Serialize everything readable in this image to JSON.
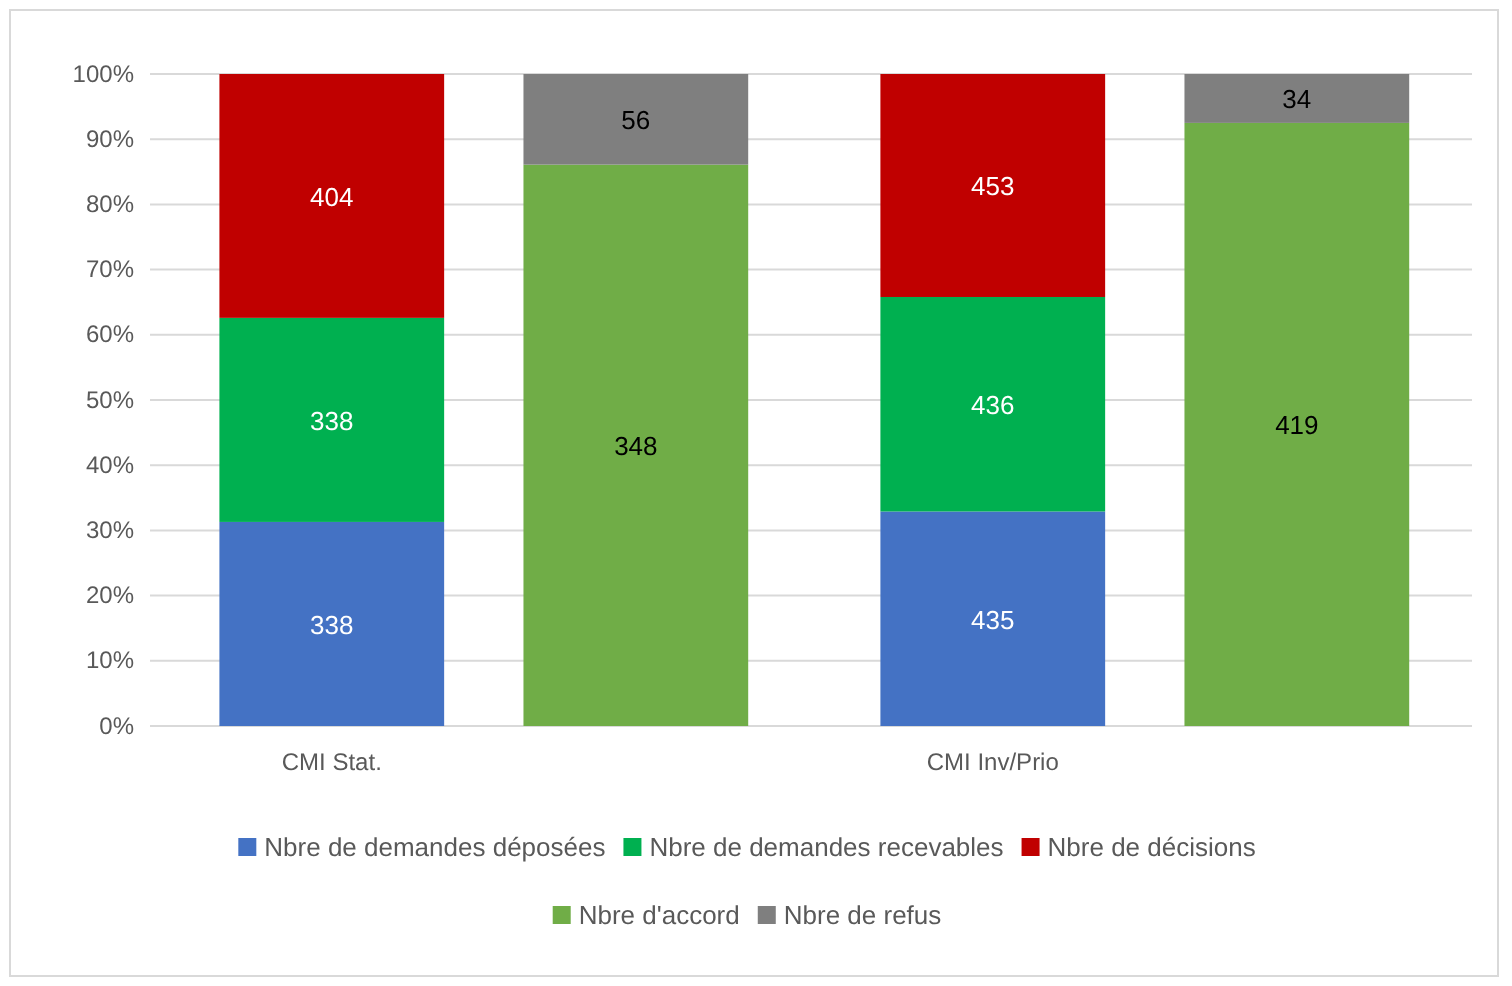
{
  "chart_data": {
    "type": "bar",
    "stacked": true,
    "categories": [
      "CMI Stat.",
      null,
      "CMI Inv/Prio",
      null
    ],
    "series": [
      {
        "name": "Nbre de demandes déposées",
        "color": "#4472c4",
        "values": [
          31.3,
          null,
          32.9,
          null
        ]
      },
      {
        "name": "Nbre de demandes recevables",
        "color": "#00b050",
        "values": [
          31.3,
          null,
          32.9,
          null
        ]
      },
      {
        "name": "Nbre de décisions",
        "color": "#c00000",
        "values": [
          37.4,
          null,
          34.2,
          null
        ]
      },
      {
        "name": "Nbre d'accord",
        "color": "#70ad47",
        "values": [
          null,
          86.1,
          null,
          92.5
        ]
      },
      {
        "name": "Nbre de refus",
        "color": "#7f7f7f",
        "values": [
          null,
          13.9,
          null,
          7.5
        ]
      }
    ],
    "ylim": [
      0,
      100
    ],
    "yticks": [
      {
        "value": 0,
        "label": "0%"
      },
      {
        "value": 10,
        "label": "10%"
      },
      {
        "value": 20,
        "label": "20%"
      },
      {
        "value": 30,
        "label": "30%"
      },
      {
        "value": 40,
        "label": "40%"
      },
      {
        "value": 50,
        "label": "50%"
      },
      {
        "value": 60,
        "label": "60%"
      },
      {
        "value": 70,
        "label": "70%"
      },
      {
        "value": 80,
        "label": "80%"
      },
      {
        "value": 90,
        "label": "90%"
      },
      {
        "value": 100,
        "label": "100%"
      }
    ],
    "grid": "y",
    "legend": "bottom",
    "annotations": [
      "338",
      "338",
      "404",
      "348",
      "56",
      "435",
      "436",
      "453",
      "419",
      "34"
    ]
  }
}
